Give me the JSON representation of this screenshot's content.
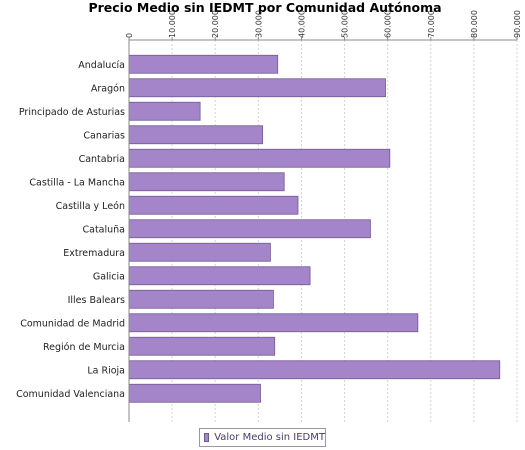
{
  "chart_data": {
    "type": "bar",
    "orientation": "horizontal",
    "title": "Precio Medio sin IEDMT por Comunidad Autónoma",
    "categories": [
      "Andalucía",
      "Aragón",
      "Principado de Asturias",
      "Canarias",
      "Cantabria",
      "Castilla - La Mancha",
      "Castilla y León",
      "Cataluña",
      "Extremadura",
      "Galicia",
      "Illes Balears",
      "Comunidad de Madrid",
      "Región de Murcia",
      "La Rioja",
      "Comunidad Valenciana"
    ],
    "series": [
      {
        "name": "Valor Medio sin IEDMT",
        "values": [
          34500,
          59500,
          16500,
          31000,
          60500,
          36000,
          39200,
          56000,
          32800,
          42000,
          33500,
          67000,
          33800,
          86000,
          30500
        ]
      }
    ],
    "x_ticks": [
      "0",
      "10.000",
      "20.000",
      "30.000",
      "40.000",
      "50.000",
      "60.000",
      "70.000",
      "80.000",
      "90.000"
    ],
    "xlim": [
      0,
      90000
    ],
    "tick_step": 10000,
    "grid": true,
    "legend_position": "bottom",
    "colors": {
      "bar": "#a585c9",
      "bar_border": "#6f5a8f",
      "grid": "#d4d4d4",
      "axis": "#888888"
    }
  }
}
